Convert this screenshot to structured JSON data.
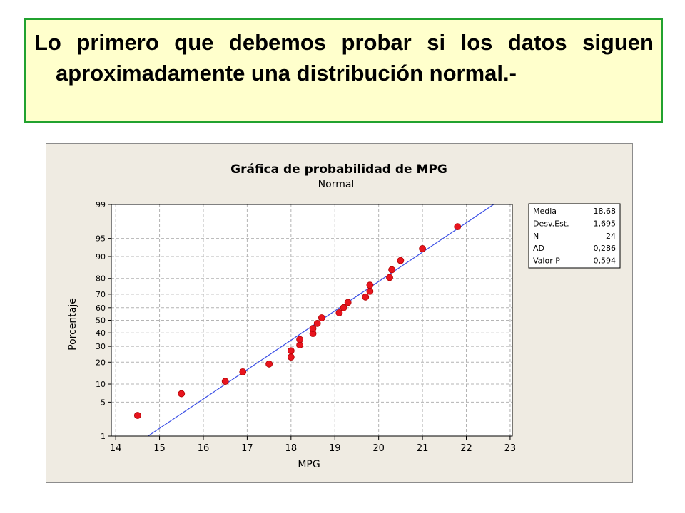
{
  "header": {
    "text": "Lo primero que debemos probar si los datos siguen aproximadamente una distribución normal.-"
  },
  "chart_data": {
    "type": "scatter",
    "title": "Gráfica de probabilidad de MPG",
    "subtitle": "Normal",
    "xlabel": "MPG",
    "ylabel": "Porcentaje",
    "xlim": [
      13.9,
      23.05
    ],
    "x_ticks": [
      14,
      15,
      16,
      17,
      18,
      19,
      20,
      21,
      22,
      23
    ],
    "y_scale": "normal-probability",
    "y_ticks": [
      1,
      5,
      10,
      20,
      30,
      40,
      50,
      60,
      70,
      80,
      90,
      95,
      99
    ],
    "grid": true,
    "fit_line": {
      "mean": 18.68,
      "sd": 1.695,
      "color": "#3c50e6"
    },
    "point_color": "#e8141e",
    "points": [
      {
        "x": 14.5,
        "y": 2.8
      },
      {
        "x": 15.5,
        "y": 7.0
      },
      {
        "x": 16.5,
        "y": 11.0
      },
      {
        "x": 16.9,
        "y": 15.0
      },
      {
        "x": 17.5,
        "y": 19.0
      },
      {
        "x": 18.0,
        "y": 23.0
      },
      {
        "x": 18.0,
        "y": 27.0
      },
      {
        "x": 18.2,
        "y": 31.0
      },
      {
        "x": 18.2,
        "y": 35.0
      },
      {
        "x": 18.5,
        "y": 39.5
      },
      {
        "x": 18.5,
        "y": 43.5
      },
      {
        "x": 18.6,
        "y": 47.5
      },
      {
        "x": 18.7,
        "y": 52.0
      },
      {
        "x": 19.1,
        "y": 56.0
      },
      {
        "x": 19.2,
        "y": 60.0
      },
      {
        "x": 19.3,
        "y": 64.0
      },
      {
        "x": 19.7,
        "y": 68.0
      },
      {
        "x": 19.8,
        "y": 72.0
      },
      {
        "x": 19.8,
        "y": 76.0
      },
      {
        "x": 20.25,
        "y": 80.5
      },
      {
        "x": 20.3,
        "y": 84.5
      },
      {
        "x": 20.5,
        "y": 88.5
      },
      {
        "x": 21.0,
        "y": 92.5
      },
      {
        "x": 21.8,
        "y": 97.0
      }
    ],
    "stats": [
      {
        "label": "Media",
        "value": "18,68"
      },
      {
        "label": "Desv.Est.",
        "value": "1,695"
      },
      {
        "label": "N",
        "value": "24"
      },
      {
        "label": "AD",
        "value": "0,286"
      },
      {
        "label": "Valor P",
        "value": "0,594"
      }
    ]
  }
}
